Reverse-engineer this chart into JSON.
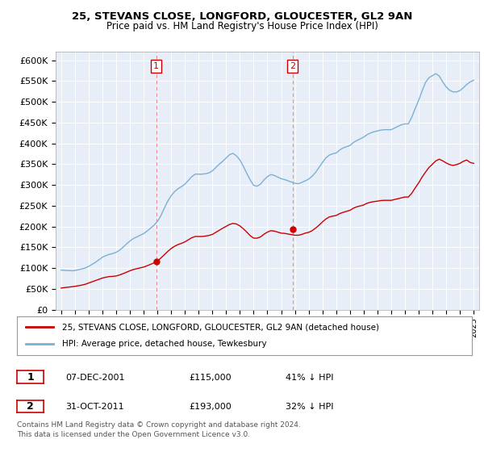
{
  "title1": "25, STEVANS CLOSE, LONGFORD, GLOUCESTER, GL2 9AN",
  "title2": "Price paid vs. HM Land Registry's House Price Index (HPI)",
  "ylim": [
    0,
    620000
  ],
  "yticks": [
    0,
    50000,
    100000,
    150000,
    200000,
    250000,
    300000,
    350000,
    400000,
    450000,
    500000,
    550000,
    600000
  ],
  "ytick_labels": [
    "£0",
    "£50K",
    "£100K",
    "£150K",
    "£200K",
    "£250K",
    "£300K",
    "£350K",
    "£400K",
    "£450K",
    "£500K",
    "£550K",
    "£600K"
  ],
  "xlim_start": 1994.6,
  "xlim_end": 2025.4,
  "marker1_x": 2001.92,
  "marker2_x": 2011.83,
  "sale1_price_y": 115000,
  "sale2_price_y": 193000,
  "sale1_date": "07-DEC-2001",
  "sale1_price": "£115,000",
  "sale1_pct": "41% ↓ HPI",
  "sale2_date": "31-OCT-2011",
  "sale2_price": "£193,000",
  "sale2_pct": "32% ↓ HPI",
  "legend_red": "25, STEVANS CLOSE, LONGFORD, GLOUCESTER, GL2 9AN (detached house)",
  "legend_blue": "HPI: Average price, detached house, Tewkesbury",
  "footer1": "Contains HM Land Registry data © Crown copyright and database right 2024.",
  "footer2": "This data is licensed under the Open Government Licence v3.0.",
  "bg_color": "white",
  "plot_bg": "#e8eef8",
  "red_color": "#cc0000",
  "blue_color": "#7ab0d4",
  "grid_color": "#ffffff",
  "hpi_data": [
    [
      1995.0,
      95000
    ],
    [
      1995.25,
      94500
    ],
    [
      1995.5,
      94000
    ],
    [
      1995.75,
      93500
    ],
    [
      1996.0,
      94000
    ],
    [
      1996.25,
      96000
    ],
    [
      1996.5,
      98000
    ],
    [
      1996.75,
      100000
    ],
    [
      1997.0,
      104000
    ],
    [
      1997.25,
      109000
    ],
    [
      1997.5,
      114000
    ],
    [
      1997.75,
      120000
    ],
    [
      1998.0,
      126000
    ],
    [
      1998.25,
      130000
    ],
    [
      1998.5,
      133000
    ],
    [
      1998.75,
      135000
    ],
    [
      1999.0,
      138000
    ],
    [
      1999.25,
      143000
    ],
    [
      1999.5,
      150000
    ],
    [
      1999.75,
      158000
    ],
    [
      2000.0,
      165000
    ],
    [
      2000.25,
      171000
    ],
    [
      2000.5,
      175000
    ],
    [
      2000.75,
      179000
    ],
    [
      2001.0,
      183000
    ],
    [
      2001.25,
      189000
    ],
    [
      2001.5,
      196000
    ],
    [
      2001.75,
      203000
    ],
    [
      2002.0,
      212000
    ],
    [
      2002.25,
      226000
    ],
    [
      2002.5,
      244000
    ],
    [
      2002.75,
      261000
    ],
    [
      2003.0,
      274000
    ],
    [
      2003.25,
      284000
    ],
    [
      2003.5,
      291000
    ],
    [
      2003.75,
      296000
    ],
    [
      2004.0,
      302000
    ],
    [
      2004.25,
      311000
    ],
    [
      2004.5,
      320000
    ],
    [
      2004.75,
      326000
    ],
    [
      2005.0,
      326000
    ],
    [
      2005.25,
      326000
    ],
    [
      2005.5,
      327000
    ],
    [
      2005.75,
      329000
    ],
    [
      2006.0,
      334000
    ],
    [
      2006.25,
      342000
    ],
    [
      2006.5,
      350000
    ],
    [
      2006.75,
      357000
    ],
    [
      2007.0,
      365000
    ],
    [
      2007.25,
      373000
    ],
    [
      2007.5,
      376000
    ],
    [
      2007.75,
      370000
    ],
    [
      2008.0,
      360000
    ],
    [
      2008.25,
      345000
    ],
    [
      2008.5,
      328000
    ],
    [
      2008.75,
      312000
    ],
    [
      2009.0,
      299000
    ],
    [
      2009.25,
      297000
    ],
    [
      2009.5,
      302000
    ],
    [
      2009.75,
      312000
    ],
    [
      2010.0,
      320000
    ],
    [
      2010.25,
      325000
    ],
    [
      2010.5,
      323000
    ],
    [
      2010.75,
      319000
    ],
    [
      2011.0,
      315000
    ],
    [
      2011.25,
      313000
    ],
    [
      2011.5,
      310000
    ],
    [
      2011.75,
      307000
    ],
    [
      2012.0,
      304000
    ],
    [
      2012.25,
      303000
    ],
    [
      2012.5,
      306000
    ],
    [
      2012.75,
      310000
    ],
    [
      2013.0,
      314000
    ],
    [
      2013.25,
      321000
    ],
    [
      2013.5,
      330000
    ],
    [
      2013.75,
      342000
    ],
    [
      2014.0,
      354000
    ],
    [
      2014.25,
      365000
    ],
    [
      2014.5,
      372000
    ],
    [
      2014.75,
      375000
    ],
    [
      2015.0,
      377000
    ],
    [
      2015.25,
      384000
    ],
    [
      2015.5,
      389000
    ],
    [
      2015.75,
      392000
    ],
    [
      2016.0,
      395000
    ],
    [
      2016.25,
      402000
    ],
    [
      2016.5,
      407000
    ],
    [
      2016.75,
      411000
    ],
    [
      2017.0,
      415000
    ],
    [
      2017.25,
      421000
    ],
    [
      2017.5,
      425000
    ],
    [
      2017.75,
      428000
    ],
    [
      2018.0,
      430000
    ],
    [
      2018.25,
      432000
    ],
    [
      2018.5,
      433000
    ],
    [
      2018.75,
      433000
    ],
    [
      2019.0,
      433000
    ],
    [
      2019.25,
      437000
    ],
    [
      2019.5,
      441000
    ],
    [
      2019.75,
      445000
    ],
    [
      2020.0,
      447000
    ],
    [
      2020.25,
      447000
    ],
    [
      2020.5,
      463000
    ],
    [
      2020.75,
      484000
    ],
    [
      2021.0,
      504000
    ],
    [
      2021.25,
      526000
    ],
    [
      2021.5,
      547000
    ],
    [
      2021.75,
      558000
    ],
    [
      2022.0,
      563000
    ],
    [
      2022.25,
      568000
    ],
    [
      2022.5,
      562000
    ],
    [
      2022.75,
      548000
    ],
    [
      2023.0,
      536000
    ],
    [
      2023.25,
      528000
    ],
    [
      2023.5,
      524000
    ],
    [
      2023.75,
      524000
    ],
    [
      2024.0,
      527000
    ],
    [
      2024.25,
      534000
    ],
    [
      2024.5,
      542000
    ],
    [
      2024.75,
      548000
    ],
    [
      2025.0,
      552000
    ]
  ],
  "house_data": [
    [
      1995.0,
      52000
    ],
    [
      1995.25,
      53000
    ],
    [
      1995.5,
      54000
    ],
    [
      1995.75,
      55000
    ],
    [
      1996.0,
      56000
    ],
    [
      1996.25,
      57500
    ],
    [
      1996.5,
      59000
    ],
    [
      1996.75,
      61000
    ],
    [
      1997.0,
      64000
    ],
    [
      1997.25,
      67000
    ],
    [
      1997.5,
      70000
    ],
    [
      1997.75,
      73000
    ],
    [
      1998.0,
      76000
    ],
    [
      1998.25,
      78000
    ],
    [
      1998.5,
      79500
    ],
    [
      1998.75,
      80000
    ],
    [
      1999.0,
      81000
    ],
    [
      1999.25,
      83500
    ],
    [
      1999.5,
      86500
    ],
    [
      1999.75,
      90000
    ],
    [
      2000.0,
      93500
    ],
    [
      2000.25,
      96500
    ],
    [
      2000.5,
      98500
    ],
    [
      2000.75,
      100500
    ],
    [
      2001.0,
      102500
    ],
    [
      2001.25,
      105500
    ],
    [
      2001.5,
      109000
    ],
    [
      2001.75,
      112500
    ],
    [
      2002.0,
      117000
    ],
    [
      2002.25,
      124000
    ],
    [
      2002.5,
      132000
    ],
    [
      2002.75,
      140000
    ],
    [
      2003.0,
      147000
    ],
    [
      2003.25,
      152500
    ],
    [
      2003.5,
      156500
    ],
    [
      2003.75,
      159500
    ],
    [
      2004.0,
      163000
    ],
    [
      2004.25,
      168000
    ],
    [
      2004.5,
      173000
    ],
    [
      2004.75,
      176000
    ],
    [
      2005.0,
      176000
    ],
    [
      2005.25,
      176000
    ],
    [
      2005.5,
      177000
    ],
    [
      2005.75,
      178500
    ],
    [
      2006.0,
      181000
    ],
    [
      2006.25,
      186000
    ],
    [
      2006.5,
      191000
    ],
    [
      2006.75,
      196000
    ],
    [
      2007.0,
      200500
    ],
    [
      2007.25,
      205000
    ],
    [
      2007.5,
      207500
    ],
    [
      2007.75,
      206000
    ],
    [
      2008.0,
      201500
    ],
    [
      2008.25,
      194500
    ],
    [
      2008.5,
      186500
    ],
    [
      2008.75,
      178000
    ],
    [
      2009.0,
      172000
    ],
    [
      2009.25,
      172000
    ],
    [
      2009.5,
      175000
    ],
    [
      2009.75,
      181500
    ],
    [
      2010.0,
      186500
    ],
    [
      2010.25,
      190000
    ],
    [
      2010.5,
      189000
    ],
    [
      2010.75,
      186500
    ],
    [
      2011.0,
      184000
    ],
    [
      2011.25,
      183500
    ],
    [
      2011.5,
      182000
    ],
    [
      2011.75,
      180500
    ],
    [
      2012.0,
      179000
    ],
    [
      2012.25,
      179000
    ],
    [
      2012.5,
      181000
    ],
    [
      2012.75,
      184000
    ],
    [
      2013.0,
      186000
    ],
    [
      2013.25,
      190000
    ],
    [
      2013.5,
      196000
    ],
    [
      2013.75,
      203000
    ],
    [
      2014.0,
      211000
    ],
    [
      2014.25,
      218000
    ],
    [
      2014.5,
      223000
    ],
    [
      2014.75,
      225000
    ],
    [
      2015.0,
      226500
    ],
    [
      2015.25,
      231000
    ],
    [
      2015.5,
      234000
    ],
    [
      2015.75,
      236500
    ],
    [
      2016.0,
      239000
    ],
    [
      2016.25,
      244000
    ],
    [
      2016.5,
      247500
    ],
    [
      2016.75,
      249500
    ],
    [
      2017.0,
      252000
    ],
    [
      2017.25,
      256000
    ],
    [
      2017.5,
      258500
    ],
    [
      2017.75,
      260000
    ],
    [
      2018.0,
      261000
    ],
    [
      2018.25,
      262500
    ],
    [
      2018.5,
      263000
    ],
    [
      2018.75,
      263000
    ],
    [
      2019.0,
      263000
    ],
    [
      2019.25,
      265000
    ],
    [
      2019.5,
      267000
    ],
    [
      2019.75,
      269000
    ],
    [
      2020.0,
      271000
    ],
    [
      2020.25,
      271000
    ],
    [
      2020.5,
      280000
    ],
    [
      2020.75,
      293000
    ],
    [
      2021.0,
      305000
    ],
    [
      2021.25,
      319000
    ],
    [
      2021.5,
      331000
    ],
    [
      2021.75,
      342000
    ],
    [
      2022.0,
      350000
    ],
    [
      2022.25,
      358000
    ],
    [
      2022.5,
      362000
    ],
    [
      2022.75,
      358000
    ],
    [
      2023.0,
      353000
    ],
    [
      2023.25,
      349000
    ],
    [
      2023.5,
      347000
    ],
    [
      2023.75,
      349000
    ],
    [
      2024.0,
      352000
    ],
    [
      2024.25,
      357000
    ],
    [
      2024.5,
      360000
    ],
    [
      2024.75,
      354000
    ],
    [
      2025.0,
      352000
    ]
  ]
}
